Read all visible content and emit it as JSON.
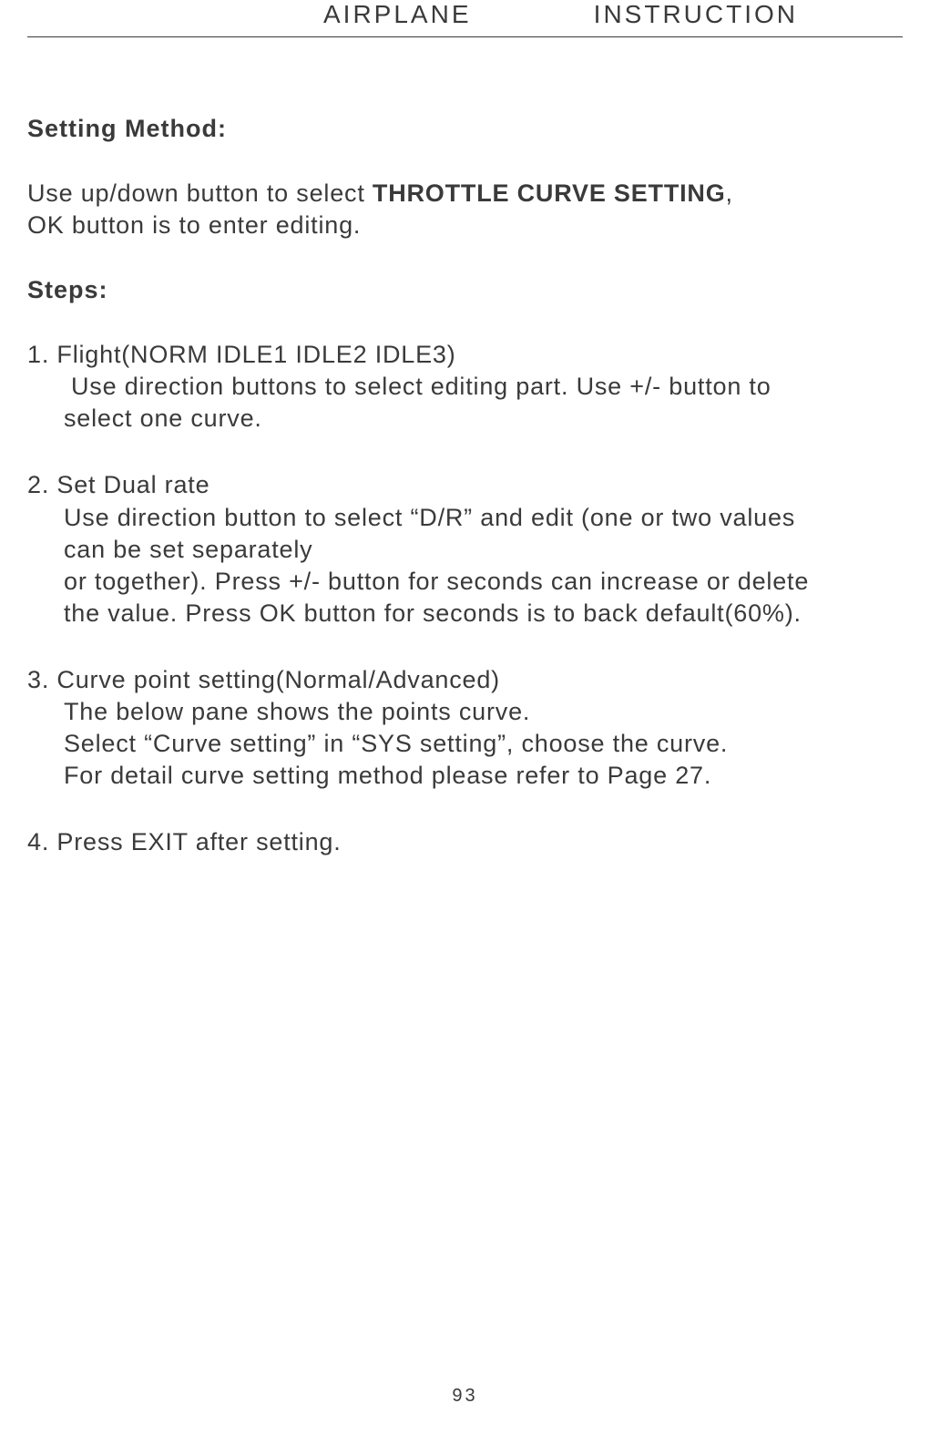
{
  "header": {
    "left": "AIRPLANE",
    "right": "INSTRUCTION"
  },
  "sections": {
    "setting_method_title": "Setting Method:",
    "intro_line1_pre": "Use up/down button to select ",
    "intro_line1_bold": "THROTTLE CURVE SETTING",
    "intro_line1_post": ",",
    "intro_line2": "OK button is to enter editing.",
    "steps_title": "Steps:",
    "step1_line1": "1. Flight(NORM IDLE1 IDLE2 IDLE3)",
    "step1_line2": "Use direction buttons to select editing part. Use +/- button to",
    "step1_line3": "select one curve.",
    "step2_line1": "2. Set Dual rate",
    "step2_line2": "Use direction button to select “D/R” and edit (one or two values",
    "step2_line3": "can be set separately",
    "step2_line4": "or together). Press +/- button for seconds can increase or delete",
    "step2_line5": "the value. Press OK button for seconds  is to back default(60%).",
    "step3_line1": "3. Curve point setting(Normal/Advanced)",
    "step3_line2": "The below pane shows the points curve.",
    "step3_line3": "Select “Curve setting” in “SYS setting”, choose the curve.",
    "step3_line4": "For detail curve setting method please refer to Page 27.",
    "step4_line1": "4. Press EXIT after setting."
  },
  "page_number": "93",
  "colors": {
    "text": "#3a3a3a",
    "background": "#ffffff",
    "border": "#3a3a3a"
  },
  "typography": {
    "body_fontsize": 27,
    "header_fontsize": 28,
    "pagenum_fontsize": 20
  }
}
